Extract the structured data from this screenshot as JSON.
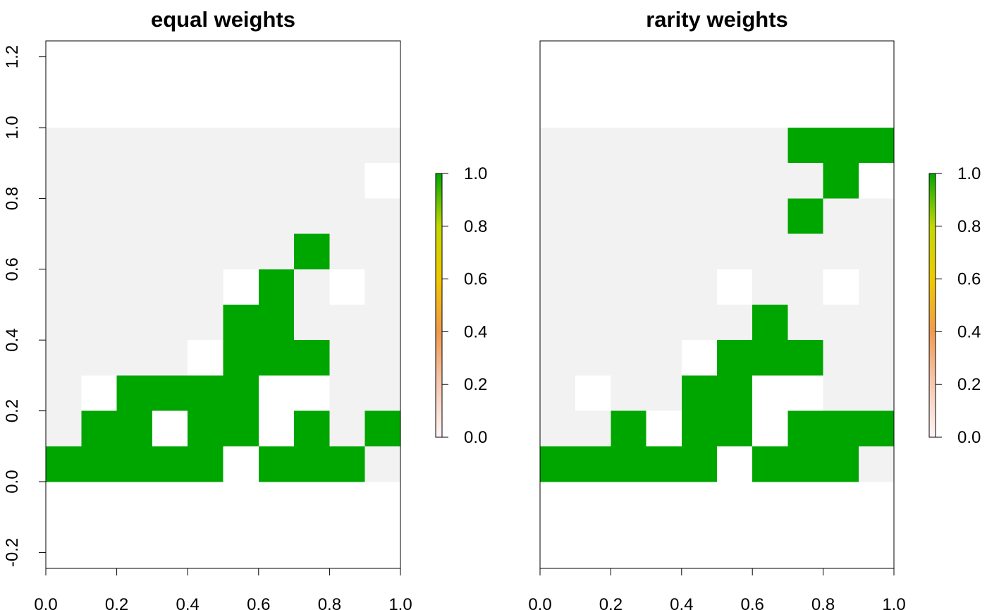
{
  "chart_data": [
    {
      "type": "heatmap",
      "title": "equal weights",
      "x_ticks": [
        "0.0",
        "0.2",
        "0.4",
        "0.6",
        "0.8",
        "1.0"
      ],
      "y_ticks": [
        "-0.2",
        "0.0",
        "0.2",
        "0.4",
        "0.6",
        "0.8",
        "1.0",
        "1.2"
      ],
      "xlim": [
        0,
        1
      ],
      "ylim": [
        -0.245,
        1.245
      ],
      "raster_extent": {
        "x": [
          0,
          1
        ],
        "y": [
          0,
          1
        ]
      },
      "cell_size": 0.1,
      "encoding": "1 = selected (green), 0 = not selected (white), null = NA (light grey)",
      "grid_rows_top_to_bottom": [
        [
          null,
          null,
          null,
          null,
          null,
          null,
          null,
          null,
          null,
          null
        ],
        [
          null,
          null,
          null,
          null,
          null,
          null,
          null,
          null,
          null,
          0
        ],
        [
          null,
          null,
          null,
          null,
          null,
          null,
          null,
          null,
          null,
          null
        ],
        [
          null,
          null,
          null,
          null,
          null,
          null,
          null,
          1,
          null,
          null
        ],
        [
          null,
          null,
          null,
          null,
          null,
          0,
          1,
          null,
          0,
          null
        ],
        [
          null,
          null,
          null,
          null,
          null,
          1,
          1,
          null,
          null,
          null
        ],
        [
          null,
          null,
          null,
          null,
          0,
          1,
          1,
          1,
          null,
          null
        ],
        [
          null,
          0,
          1,
          1,
          1,
          1,
          0,
          0,
          null,
          null
        ],
        [
          null,
          1,
          1,
          0,
          1,
          1,
          0,
          1,
          null,
          1
        ],
        [
          1,
          1,
          1,
          1,
          1,
          0,
          1,
          1,
          1,
          null
        ]
      ],
      "legend": {
        "type": "colorbar",
        "min": 0,
        "max": 1,
        "tick_values": [
          0,
          0.2,
          0.4,
          0.6,
          0.8,
          1
        ],
        "ticks": [
          "0.0",
          "0.2",
          "0.4",
          "0.6",
          "0.8",
          "1.0"
        ],
        "colors": [
          "#fff5f5",
          "#f6c9b3",
          "#f09a4e",
          "#f0c800",
          "#c2d800",
          "#00a600"
        ]
      }
    },
    {
      "type": "heatmap",
      "title": "rarity weights",
      "x_ticks": [
        "0.0",
        "0.2",
        "0.4",
        "0.6",
        "0.8",
        "1.0"
      ],
      "y_ticks": [],
      "xlim": [
        0,
        1
      ],
      "ylim": [
        -0.245,
        1.245
      ],
      "raster_extent": {
        "x": [
          0,
          1
        ],
        "y": [
          0,
          1
        ]
      },
      "cell_size": 0.1,
      "encoding": "1 = selected (green), 0 = not selected (white), null = NA (light grey)",
      "grid_rows_top_to_bottom": [
        [
          null,
          null,
          null,
          null,
          null,
          null,
          null,
          1,
          1,
          1
        ],
        [
          null,
          null,
          null,
          null,
          null,
          null,
          null,
          null,
          1,
          0
        ],
        [
          null,
          null,
          null,
          null,
          null,
          null,
          null,
          1,
          null,
          null
        ],
        [
          null,
          null,
          null,
          null,
          null,
          null,
          null,
          null,
          null,
          null
        ],
        [
          null,
          null,
          null,
          null,
          null,
          0,
          null,
          null,
          0,
          null
        ],
        [
          null,
          null,
          null,
          null,
          null,
          null,
          1,
          null,
          null,
          null
        ],
        [
          null,
          null,
          null,
          null,
          0,
          1,
          1,
          1,
          null,
          null
        ],
        [
          null,
          0,
          null,
          null,
          1,
          1,
          0,
          0,
          null,
          null
        ],
        [
          null,
          null,
          1,
          0,
          1,
          1,
          0,
          1,
          1,
          1
        ],
        [
          1,
          1,
          1,
          1,
          1,
          0,
          1,
          1,
          1,
          null
        ]
      ],
      "legend": {
        "type": "colorbar",
        "min": 0,
        "max": 1,
        "tick_values": [
          0,
          0.2,
          0.4,
          0.6,
          0.8,
          1
        ],
        "ticks": [
          "0.0",
          "0.2",
          "0.4",
          "0.6",
          "0.8",
          "1.0"
        ],
        "colors": [
          "#fff5f5",
          "#f6c9b3",
          "#f09a4e",
          "#f0c800",
          "#c2d800",
          "#00a600"
        ]
      }
    }
  ],
  "colors": {
    "selected": "#00a600",
    "not_selected": "#ffffff",
    "na": "#f2f2f2",
    "axis": "#000000"
  }
}
